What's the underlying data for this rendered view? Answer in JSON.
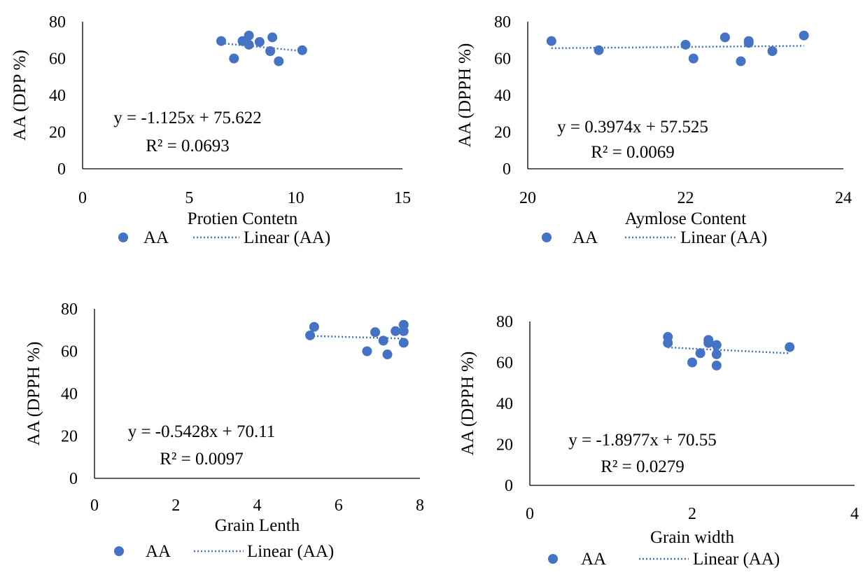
{
  "chart_data": [
    {
      "type": "scatter",
      "xlabel": "Protien Contetn",
      "ylabel": "AA (DPP %)",
      "xlim": [
        0,
        15
      ],
      "ylim": [
        0,
        80
      ],
      "xticks": [
        "0",
        "5",
        "10",
        "15"
      ],
      "yticks": [
        "0",
        "20",
        "40",
        "60",
        "80"
      ],
      "points": [
        [
          6.5,
          69.5
        ],
        [
          7.1,
          60
        ],
        [
          7.5,
          69.5
        ],
        [
          7.8,
          72.5
        ],
        [
          7.8,
          67.5
        ],
        [
          8.3,
          69
        ],
        [
          8.8,
          64
        ],
        [
          8.9,
          71.5
        ],
        [
          9.2,
          58.5
        ],
        [
          10.3,
          64.5
        ]
      ],
      "trendline": {
        "slope": -1.125,
        "intercept": 75.622,
        "x": [
          6.5,
          10.3
        ]
      },
      "equation": "y = -1.125x + 75.622",
      "r2": "R² = 0.0693",
      "legend": {
        "series": "AA",
        "trend": "Linear (AA)"
      },
      "color": "#4472C4"
    },
    {
      "type": "scatter",
      "xlabel": "Aymlose Content",
      "ylabel": "AA (DPPH %)",
      "xlim": [
        20,
        24
      ],
      "ylim": [
        0,
        80
      ],
      "xticks": [
        "20",
        "22",
        "24"
      ],
      "yticks": [
        "0",
        "20",
        "40",
        "60",
        "80"
      ],
      "points": [
        [
          20.3,
          69.5
        ],
        [
          20.9,
          64.5
        ],
        [
          22.0,
          67.5
        ],
        [
          22.1,
          60
        ],
        [
          22.5,
          71.5
        ],
        [
          22.7,
          58.5
        ],
        [
          22.8,
          69.5
        ],
        [
          22.8,
          68.5
        ],
        [
          23.1,
          64
        ],
        [
          23.5,
          72.5
        ]
      ],
      "trendline": {
        "slope": 0.3974,
        "intercept": 57.525,
        "x": [
          20.3,
          23.5
        ]
      },
      "equation": "y = 0.3974x + 57.525",
      "r2": "R² = 0.0069",
      "legend": {
        "series": "AA",
        "trend": "Linear (AA)"
      },
      "color": "#4472C4"
    },
    {
      "type": "scatter",
      "xlabel": "Grain Lenth",
      "ylabel": "AA (DPPH %)",
      "xlim": [
        0,
        8
      ],
      "ylim": [
        0,
        80
      ],
      "xticks": [
        "0",
        "2",
        "4",
        "6",
        "8"
      ],
      "yticks": [
        "0",
        "20",
        "40",
        "60",
        "80"
      ],
      "points": [
        [
          5.3,
          67.5
        ],
        [
          5.4,
          71.5
        ],
        [
          6.7,
          60
        ],
        [
          6.9,
          69
        ],
        [
          7.1,
          65
        ],
        [
          7.2,
          58.5
        ],
        [
          7.4,
          69.5
        ],
        [
          7.6,
          72.5
        ],
        [
          7.6,
          69.5
        ],
        [
          7.6,
          64
        ]
      ],
      "trendline": {
        "slope": -0.5428,
        "intercept": 70.11,
        "x": [
          5.3,
          7.6
        ]
      },
      "equation": "y = -0.5428x + 70.11",
      "r2": "R² = 0.0097",
      "legend": {
        "series": "AA",
        "trend": "Linear (AA)"
      },
      "color": "#4472C4"
    },
    {
      "type": "scatter",
      "xlabel": "Grain width",
      "ylabel": "AA (DPPH %)",
      "xlim": [
        0,
        4
      ],
      "ylim": [
        0,
        80
      ],
      "xticks": [
        "0",
        "2",
        "4"
      ],
      "yticks": [
        "0",
        "20",
        "40",
        "60",
        "80"
      ],
      "points": [
        [
          1.7,
          72.5
        ],
        [
          1.7,
          69.5
        ],
        [
          2.0,
          60
        ],
        [
          2.1,
          64.5
        ],
        [
          2.2,
          71
        ],
        [
          2.2,
          69.5
        ],
        [
          2.3,
          68.5
        ],
        [
          2.3,
          64
        ],
        [
          2.3,
          58.5
        ],
        [
          3.2,
          67.5
        ]
      ],
      "trendline": {
        "slope": -1.8977,
        "intercept": 70.55,
        "x": [
          1.7,
          3.2
        ]
      },
      "equation": "y = -1.8977x + 70.55",
      "r2": "R² = 0.0279",
      "legend": {
        "series": "AA",
        "trend": "Linear (AA)"
      },
      "color": "#4472C4"
    }
  ]
}
